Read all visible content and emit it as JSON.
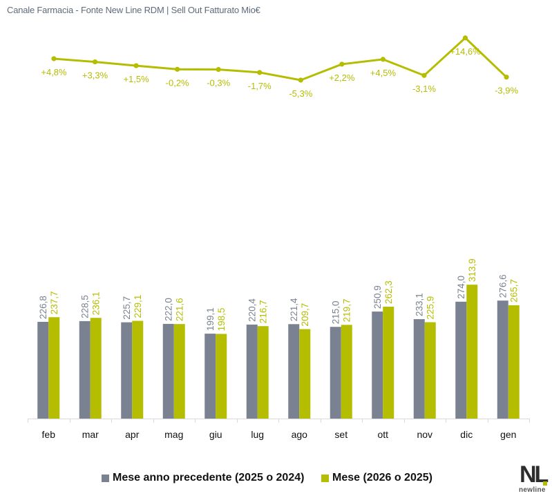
{
  "title": "Canale Farmacia - Fonte New Line RDM | Sell Out Fatturato Mio€",
  "colors": {
    "previous": "#7a8291",
    "current": "#b5bd00",
    "growth_line": "#b5bd00",
    "axis": "#d9d9d9",
    "label_prev": "#7a8291",
    "label_curr": "#b5bd00"
  },
  "legend": {
    "previous_label": "Mese anno precedente (2025 o 2024)",
    "current_label": "Mese (2026 o 2025)"
  },
  "logo": {
    "mark": "NL",
    "wordmark": "newline"
  },
  "chart_data": [
    {
      "type": "line",
      "name": "growth",
      "title": "",
      "categories": [
        "feb",
        "mar",
        "apr",
        "mag",
        "giu",
        "lug",
        "ago",
        "set",
        "ott",
        "nov",
        "dic",
        "gen"
      ],
      "values": [
        4.8,
        3.3,
        1.5,
        -0.2,
        -0.3,
        -1.7,
        -5.3,
        2.2,
        4.5,
        -3.1,
        14.6,
        -3.9
      ],
      "labels": [
        "+4,8%",
        "+3,3%",
        "+1,5%",
        "-0,2%",
        "-0,3%",
        "-1,7%",
        "-5,3%",
        "+2,2%",
        "+4,5%",
        "-3,1%",
        "+14,6%",
        "-3,9%"
      ],
      "unit": "%",
      "grid": false
    },
    {
      "type": "bar",
      "name": "sell-out",
      "title": "Canale Farmacia - Fonte New Line RDM | Sell Out Fatturato Mio€",
      "xlabel": "",
      "ylabel": "",
      "categories": [
        "feb",
        "mar",
        "apr",
        "mag",
        "giu",
        "lug",
        "ago",
        "set",
        "ott",
        "nov",
        "dic",
        "gen"
      ],
      "series": [
        {
          "name": "Mese anno precedente (2025 o 2024)",
          "values": [
            226.8,
            228.5,
            225.7,
            222.0,
            199.1,
            220.4,
            221.4,
            215.0,
            250.9,
            233.1,
            274.0,
            276.6
          ],
          "labels": [
            "226,8",
            "228,5",
            "225,7",
            "222,0",
            "199,1",
            "220,4",
            "221,4",
            "215,0",
            "250,9",
            "233,1",
            "274,0",
            "276,6"
          ]
        },
        {
          "name": "Mese (2026 o 2025)",
          "values": [
            237.7,
            236.1,
            229.1,
            221.6,
            198.5,
            216.7,
            209.7,
            219.7,
            262.3,
            225.9,
            313.9,
            265.7
          ],
          "labels": [
            "237,7",
            "236,1",
            "229,1",
            "221,6",
            "198,5",
            "216,7",
            "209,7",
            "219,7",
            "262,3",
            "225,9",
            "313,9",
            "265,7"
          ]
        }
      ],
      "ylim": [
        0,
        320
      ],
      "grid": false,
      "legend": "bottom"
    }
  ]
}
